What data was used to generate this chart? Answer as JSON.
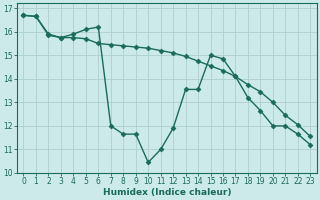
{
  "background_color": "#cdeaea",
  "grid_color": "#aecfcf",
  "line_color": "#1a6b5a",
  "marker_style": "D",
  "marker_size": 2.5,
  "line_width": 1.0,
  "xlabel": "Humidex (Indice chaleur)",
  "xlabel_fontsize": 6.5,
  "tick_fontsize": 5.5,
  "xlim": [
    -0.5,
    23.5
  ],
  "ylim": [
    10,
    17.2
  ],
  "yticks": [
    10,
    11,
    12,
    13,
    14,
    15,
    16,
    17
  ],
  "xticks": [
    0,
    1,
    2,
    3,
    4,
    5,
    6,
    7,
    8,
    9,
    10,
    11,
    12,
    13,
    14,
    15,
    16,
    17,
    18,
    19,
    20,
    21,
    22,
    23
  ],
  "series1_x": [
    0,
    1,
    2,
    3,
    4,
    5,
    6,
    7,
    8,
    9,
    10,
    11,
    12,
    13,
    14,
    15,
    16,
    17,
    18,
    19,
    20,
    21,
    22,
    23
  ],
  "series1_y": [
    16.7,
    16.65,
    15.85,
    15.75,
    15.75,
    15.7,
    15.5,
    15.45,
    15.4,
    15.35,
    15.3,
    15.2,
    15.1,
    14.95,
    14.75,
    14.55,
    14.35,
    14.1,
    13.75,
    13.45,
    13.0,
    12.45,
    12.05,
    11.55
  ],
  "series2_x": [
    0,
    1,
    2,
    3,
    4,
    5,
    6,
    7,
    8,
    9,
    10,
    11,
    12,
    13,
    14,
    15,
    16,
    17,
    18,
    19,
    20,
    21,
    22,
    23
  ],
  "series2_y": [
    16.7,
    16.65,
    15.9,
    15.75,
    15.9,
    16.1,
    16.2,
    12.0,
    11.65,
    11.65,
    10.45,
    11.0,
    11.9,
    13.55,
    13.55,
    15.0,
    14.85,
    14.1,
    13.2,
    12.65,
    12.0,
    12.0,
    11.65,
    11.2
  ]
}
